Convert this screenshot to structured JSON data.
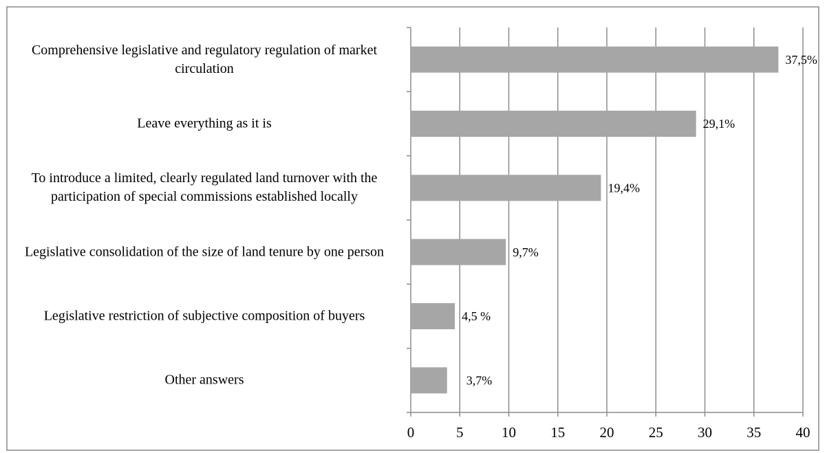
{
  "chart_data": {
    "type": "bar",
    "orientation": "horizontal",
    "categories": [
      "Comprehensive legislative and regulatory regulation of market circulation",
      "Leave everything as it is",
      "To introduce a limited, clearly regulated land turnover with the participation of special commissions established locally",
      "Legislative consolidation of the size of land tenure by one person",
      "Legislative restriction of subjective composition of buyers",
      "Other answers"
    ],
    "values": [
      37.5,
      29.1,
      19.4,
      9.7,
      4.5,
      3.7
    ],
    "value_labels": [
      "37,5%",
      "29,1%",
      "19,4%",
      "9,7%",
      "4,5 %",
      "3,7%"
    ],
    "color": "#a6a6a6",
    "xlim": [
      0,
      40
    ],
    "xticks": [
      0,
      5,
      10,
      15,
      20,
      25,
      30,
      35,
      40
    ],
    "grid": true
  }
}
